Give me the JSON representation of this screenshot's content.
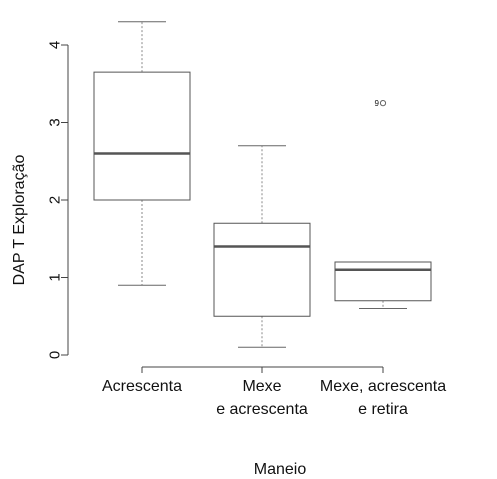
{
  "chart_data": {
    "type": "boxplot",
    "title": "",
    "xlabel": "Manejo",
    "ylabel": "DAP T Exploração",
    "ylim": [
      0,
      4.3
    ],
    "y_ticks": [
      0,
      1,
      2,
      3,
      4
    ],
    "y_tick_labels": [
      "0",
      "1",
      "2",
      "3",
      "4"
    ],
    "categories": [
      {
        "id": "acrescenta",
        "label_lines": [
          "Acrescenta"
        ]
      },
      {
        "id": "mexe_e_acrescenta",
        "label_lines": [
          "Mexe",
          "e acrescenta"
        ]
      },
      {
        "id": "mexe_acrescenta_e_retira",
        "label_lines": [
          "Mexe, acrescenta",
          "e retira"
        ]
      }
    ],
    "boxes": [
      {
        "category": "acrescenta",
        "whisker_low": 0.9,
        "q1": 2.0,
        "median": 2.6,
        "q3": 3.65,
        "whisker_high": 4.3,
        "outliers": []
      },
      {
        "category": "mexe_e_acrescenta",
        "whisker_low": 0.1,
        "q1": 0.5,
        "median": 1.4,
        "q3": 1.7,
        "whisker_high": 2.7,
        "outliers": []
      },
      {
        "category": "mexe_acrescenta_e_retira",
        "whisker_low": 0.6,
        "q1": 0.7,
        "median": 1.1,
        "q3": 1.2,
        "whisker_high": 1.2,
        "outliers": [
          {
            "value": 3.25,
            "label": "9"
          }
        ]
      }
    ]
  }
}
